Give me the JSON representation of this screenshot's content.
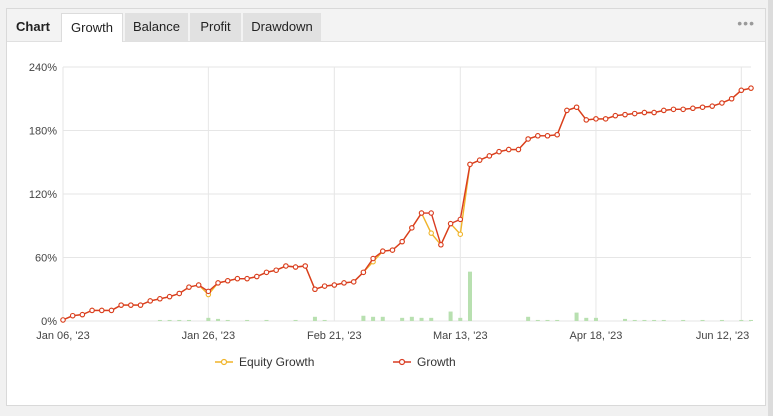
{
  "tabs": {
    "chart_label": "Chart",
    "items": [
      {
        "label": "Growth",
        "active": true
      },
      {
        "label": "Balance",
        "active": false
      },
      {
        "label": "Profit",
        "active": false
      },
      {
        "label": "Drawdown",
        "active": false
      }
    ]
  },
  "menu_icon": "more-dots-icon",
  "colors": {
    "growth": "#d93b22",
    "equity": "#f0b429",
    "volume_bar": "#b8e0b0",
    "grid": "#e6e6e6"
  },
  "chart_data": {
    "type": "line",
    "x_tick_labels": [
      "Jan 06, '23",
      "Jan 26, '23",
      "Feb 21, '23",
      "Mar 13, '23",
      "Apr 18, '23",
      "Jun 12, '23"
    ],
    "x_tick_index": [
      0,
      15,
      28,
      41,
      55,
      70
    ],
    "y_tick_labels": [
      "0%",
      "60%",
      "120%",
      "180%",
      "240%"
    ],
    "ylim": [
      0,
      240
    ],
    "grid": true,
    "legend_position": "bottom-center",
    "series": [
      {
        "name": "Growth",
        "values": [
          1,
          5,
          6,
          10,
          10,
          10,
          15,
          15,
          15,
          19,
          21,
          23,
          26,
          32,
          34,
          28,
          36,
          38,
          40,
          40,
          42,
          46,
          48,
          52,
          51,
          52,
          30,
          33,
          34,
          36,
          37,
          46,
          59,
          66,
          67,
          75,
          88,
          102,
          102,
          72,
          92,
          96,
          148,
          152,
          156,
          160,
          162,
          162,
          172,
          175,
          175,
          176,
          199,
          202,
          190,
          191,
          191,
          194,
          195,
          196,
          197,
          197,
          199,
          200,
          200,
          201,
          202,
          203,
          206,
          210,
          218,
          220
        ]
      },
      {
        "name": "Equity Growth",
        "values": [
          1,
          5,
          6,
          10,
          10,
          10,
          15,
          15,
          15,
          19,
          21,
          23,
          26,
          32,
          34,
          25,
          36,
          38,
          40,
          40,
          42,
          46,
          48,
          52,
          51,
          52,
          30,
          33,
          34,
          36,
          37,
          46,
          56,
          66,
          67,
          75,
          88,
          102,
          83,
          72,
          92,
          82,
          148,
          152,
          156,
          160,
          162,
          162,
          172,
          175,
          175,
          176,
          199,
          202,
          190,
          191,
          191,
          194,
          195,
          196,
          197,
          197,
          199,
          200,
          200,
          201,
          202,
          203,
          206,
          210,
          218,
          220
        ]
      }
    ],
    "volume": [
      0,
      0,
      0,
      0,
      0,
      0,
      0,
      0,
      0,
      0,
      1,
      1,
      1,
      1,
      0,
      3,
      2,
      1,
      0,
      1,
      0,
      1,
      0,
      0,
      1,
      0,
      4,
      1,
      0,
      0,
      0,
      5,
      4,
      4,
      0,
      3,
      4,
      3,
      3,
      0,
      9,
      3,
      47,
      0,
      0,
      0,
      0,
      0,
      4,
      1,
      1,
      1,
      0,
      8,
      3,
      3,
      0,
      0,
      2,
      1,
      1,
      1,
      1,
      0,
      1,
      0,
      1,
      0,
      1,
      0,
      1,
      1
    ]
  }
}
